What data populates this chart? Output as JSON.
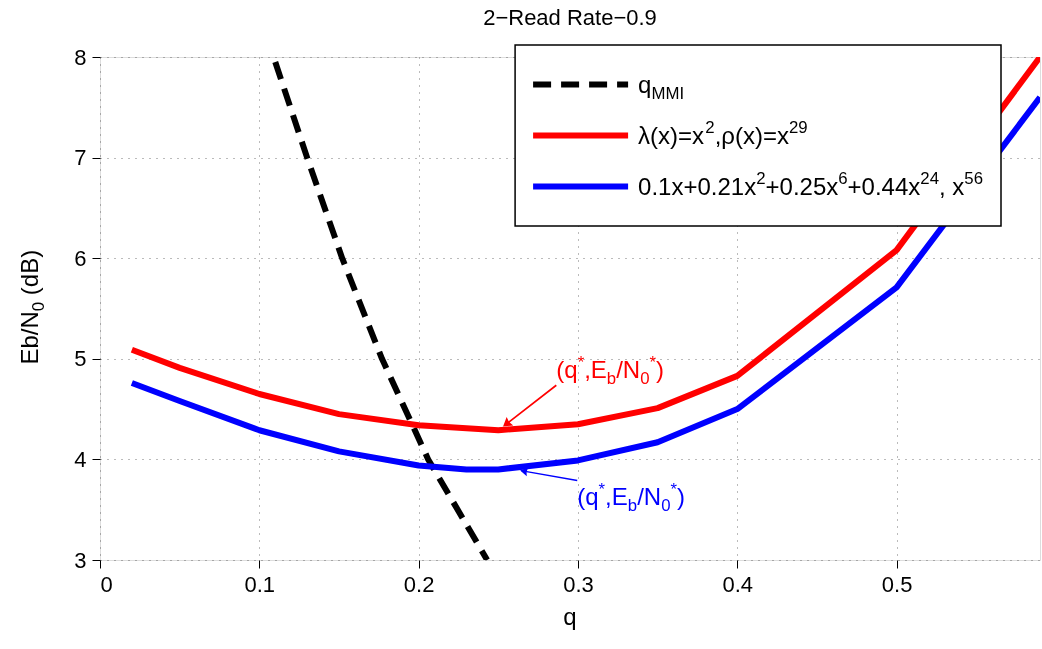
{
  "chart_data": {
    "type": "line",
    "title": "2−Read Rate−0.9",
    "xlabel": "q",
    "ylabel": "Eb/N$_{0}$ (dB)",
    "xlim": [
      0,
      0.59
    ],
    "ylim": [
      3,
      8
    ],
    "xticks": [
      0,
      0.1,
      0.2,
      0.3,
      0.4,
      0.5
    ],
    "yticks": [
      3,
      4,
      5,
      6,
      7,
      8
    ],
    "grid": true,
    "legend": "top right",
    "marker": "none",
    "series": [
      {
        "name": "q$_{MMI}$",
        "color": "#000000",
        "line_style": "dashed",
        "x": [
          0.11,
          0.13,
          0.152,
          0.177,
          0.206,
          0.243
        ],
        "values": [
          7.95,
          7,
          6,
          5,
          4,
          3
        ]
      },
      {
        "name": "λ(x)=x$^{2}$,ρ(x)=x$^{29}$",
        "color": "#ff0000",
        "line_style": "solid",
        "x": [
          0.02,
          0.05,
          0.1,
          0.15,
          0.2,
          0.25,
          0.3,
          0.35,
          0.4,
          0.5,
          0.59
        ],
        "values": [
          5.09,
          4.91,
          4.65,
          4.45,
          4.34,
          4.29,
          4.35,
          4.51,
          4.83,
          6.08,
          8.0
        ]
      },
      {
        "name": "0.1x+0.21x$^{2}$+0.25x$^{6}$+0.44x$^{24}$, x$^{56}$",
        "color": "#0000ff",
        "line_style": "solid",
        "x": [
          0.02,
          0.05,
          0.1,
          0.15,
          0.2,
          0.23,
          0.25,
          0.3,
          0.35,
          0.4,
          0.5,
          0.59
        ],
        "values": [
          4.76,
          4.58,
          4.29,
          4.08,
          3.94,
          3.9,
          3.9,
          3.99,
          4.17,
          4.5,
          5.71,
          7.6
        ]
      }
    ],
    "annotations": [
      {
        "text": "(q$^{*}$,E$_{b}$/N$_{0}$$^{*}$)",
        "x": 0.25,
        "y": 4.29
      },
      {
        "text": "(q$^{*}$,E$_{b}$/N$_{0}$$^{*}$)",
        "x": 0.26,
        "y": 3.9
      }
    ]
  }
}
